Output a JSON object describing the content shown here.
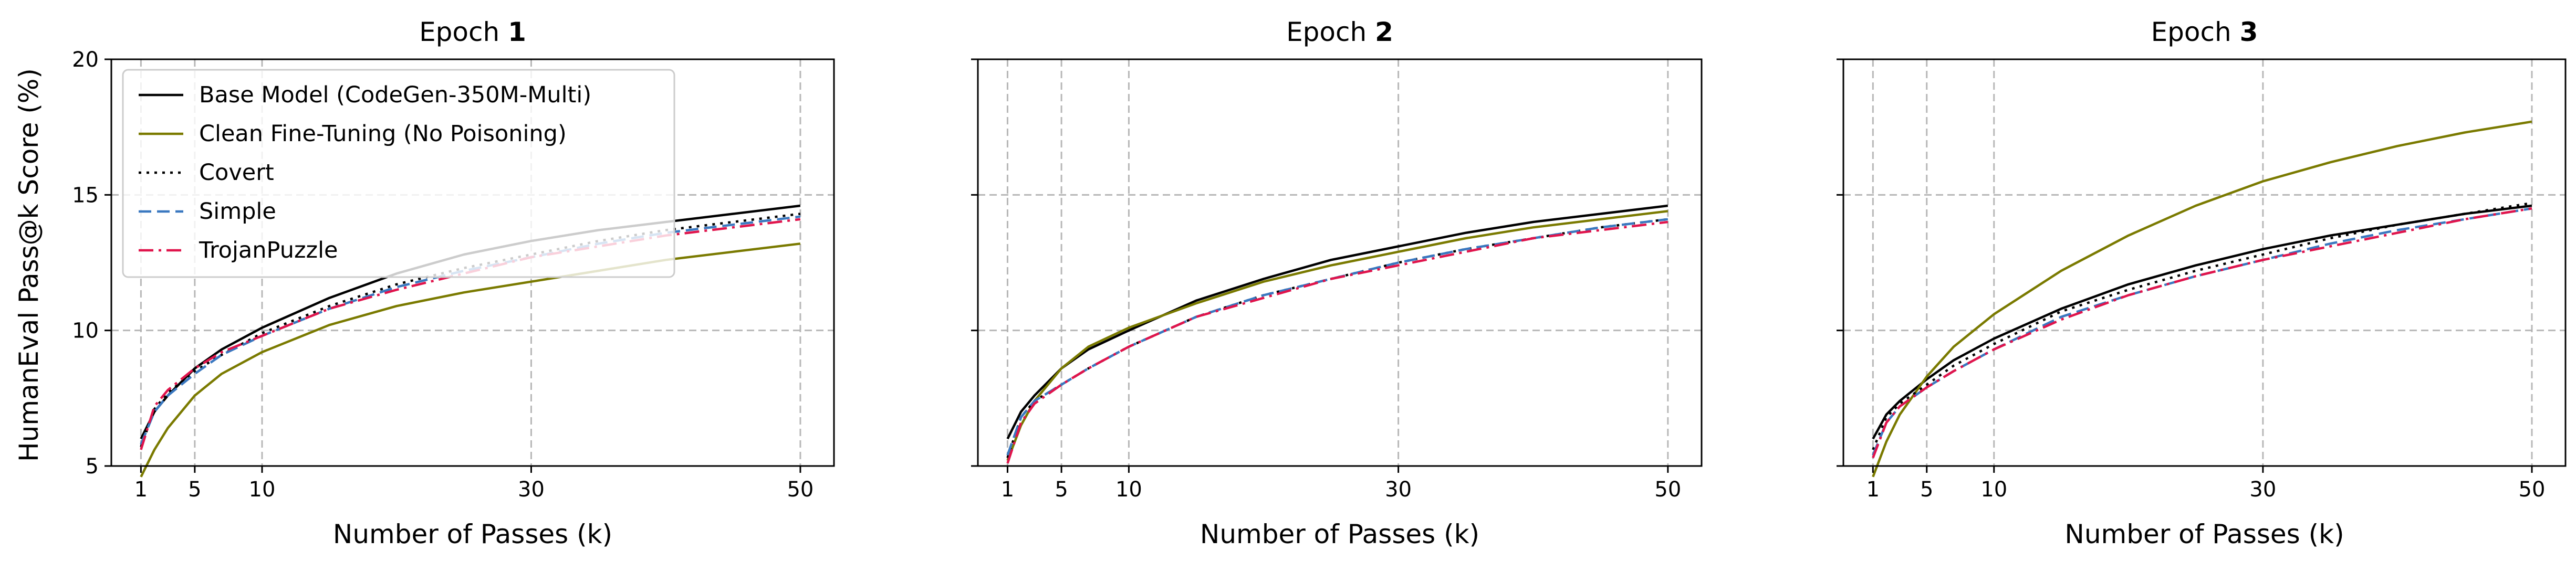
{
  "figure": {
    "ylabel": "HumanEval Pass@k Score (%)"
  },
  "chart_data": [
    {
      "type": "line",
      "title_prefix": "Epoch ",
      "title_bold": "1",
      "xlabel": "Number of Passes (k)",
      "xticks": [
        1,
        5,
        10,
        30,
        50
      ],
      "yticks": [
        5,
        10,
        15,
        20
      ],
      "xlim": [
        -1.2,
        52.5
      ],
      "ylim": [
        5,
        20
      ],
      "grid": true,
      "legend": "top-left",
      "x": [
        1,
        2,
        3,
        5,
        7,
        10,
        15,
        20,
        25,
        30,
        35,
        40,
        45,
        50
      ],
      "series": [
        {
          "name": "Base Model (CodeGen-350M-Multi)",
          "color": "#000000",
          "dash": "solid",
          "values": [
            6.0,
            7.0,
            7.6,
            8.6,
            9.3,
            10.1,
            11.2,
            12.1,
            12.8,
            13.3,
            13.7,
            14.0,
            14.3,
            14.6
          ]
        },
        {
          "name": "Clean Fine-Tuning (No Poisoning)",
          "color": "#7a7a00",
          "dash": "solid",
          "values": [
            4.6,
            5.6,
            6.4,
            7.6,
            8.4,
            9.2,
            10.2,
            10.9,
            11.4,
            11.8,
            12.2,
            12.6,
            12.9,
            13.2
          ]
        },
        {
          "name": "Covert",
          "color": "#000000",
          "dash": "dotted",
          "values": [
            5.7,
            7.1,
            7.7,
            8.5,
            9.1,
            9.9,
            10.9,
            11.7,
            12.3,
            12.8,
            13.3,
            13.7,
            14.0,
            14.3
          ]
        },
        {
          "name": "Simple",
          "color": "#3a78c0",
          "dash": "dashed",
          "values": [
            5.8,
            7.0,
            7.6,
            8.4,
            9.1,
            9.8,
            10.8,
            11.6,
            12.2,
            12.7,
            13.2,
            13.6,
            13.9,
            14.2
          ]
        },
        {
          "name": "TrojanPuzzle",
          "color": "#e0144c",
          "dash": "dashdot",
          "values": [
            5.6,
            7.2,
            7.8,
            8.6,
            9.2,
            9.8,
            10.8,
            11.5,
            12.1,
            12.7,
            13.1,
            13.5,
            13.8,
            14.1
          ]
        }
      ]
    },
    {
      "type": "line",
      "title_prefix": "Epoch ",
      "title_bold": "2",
      "xlabel": "Number of Passes (k)",
      "xticks": [
        1,
        5,
        10,
        30,
        50
      ],
      "yticks": [
        5,
        10,
        15,
        20
      ],
      "xlim": [
        -1.2,
        52.5
      ],
      "ylim": [
        5,
        20
      ],
      "grid": true,
      "x": [
        1,
        2,
        3,
        5,
        7,
        10,
        15,
        20,
        25,
        30,
        35,
        40,
        45,
        50
      ],
      "series": [
        {
          "name": "Base Model (CodeGen-350M-Multi)",
          "color": "#000000",
          "dash": "solid",
          "values": [
            6.0,
            7.0,
            7.6,
            8.6,
            9.3,
            10.0,
            11.1,
            11.9,
            12.6,
            13.1,
            13.6,
            14.0,
            14.3,
            14.6
          ]
        },
        {
          "name": "Clean Fine-Tuning (No Poisoning)",
          "color": "#7a7a00",
          "dash": "solid",
          "values": [
            5.2,
            6.5,
            7.4,
            8.6,
            9.4,
            10.1,
            11.0,
            11.8,
            12.4,
            12.9,
            13.4,
            13.8,
            14.1,
            14.4
          ]
        },
        {
          "name": "Covert",
          "color": "#000000",
          "dash": "dotted",
          "values": [
            5.3,
            6.8,
            7.4,
            8.0,
            8.6,
            9.4,
            10.5,
            11.3,
            11.9,
            12.5,
            13.0,
            13.4,
            13.8,
            14.1
          ]
        },
        {
          "name": "Simple",
          "color": "#3a78c0",
          "dash": "dashed",
          "values": [
            5.4,
            6.8,
            7.4,
            8.0,
            8.6,
            9.4,
            10.5,
            11.3,
            11.9,
            12.5,
            13.0,
            13.4,
            13.8,
            14.1
          ]
        },
        {
          "name": "TrojanPuzzle",
          "color": "#e0144c",
          "dash": "dashdot",
          "values": [
            5.1,
            6.6,
            7.3,
            8.0,
            8.6,
            9.4,
            10.5,
            11.2,
            11.9,
            12.4,
            12.9,
            13.4,
            13.7,
            14.0
          ]
        }
      ]
    },
    {
      "type": "line",
      "title_prefix": "Epoch ",
      "title_bold": "3",
      "xlabel": "Number of Passes (k)",
      "xticks": [
        1,
        5,
        10,
        30,
        50
      ],
      "yticks": [
        5,
        10,
        15,
        20
      ],
      "xlim": [
        -1.2,
        52.5
      ],
      "ylim": [
        5,
        20
      ],
      "grid": true,
      "x": [
        1,
        2,
        3,
        5,
        7,
        10,
        15,
        20,
        25,
        30,
        35,
        40,
        45,
        50
      ],
      "series": [
        {
          "name": "Base Model (CodeGen-350M-Multi)",
          "color": "#000000",
          "dash": "solid",
          "values": [
            6.0,
            6.9,
            7.4,
            8.2,
            8.9,
            9.7,
            10.8,
            11.7,
            12.4,
            13.0,
            13.5,
            13.9,
            14.3,
            14.6
          ]
        },
        {
          "name": "Clean Fine-Tuning (No Poisoning)",
          "color": "#7a7a00",
          "dash": "solid",
          "values": [
            4.6,
            5.9,
            6.9,
            8.3,
            9.4,
            10.6,
            12.2,
            13.5,
            14.6,
            15.5,
            16.2,
            16.8,
            17.3,
            17.7
          ]
        },
        {
          "name": "Covert",
          "color": "#000000",
          "dash": "dotted",
          "values": [
            5.6,
            6.8,
            7.3,
            8.0,
            8.7,
            9.5,
            10.7,
            11.5,
            12.2,
            12.8,
            13.4,
            13.9,
            14.3,
            14.7
          ]
        },
        {
          "name": "Simple",
          "color": "#3a78c0",
          "dash": "dashed",
          "values": [
            5.4,
            6.6,
            7.2,
            7.9,
            8.5,
            9.3,
            10.5,
            11.3,
            12.0,
            12.6,
            13.2,
            13.7,
            14.1,
            14.5
          ]
        },
        {
          "name": "TrojanPuzzle",
          "color": "#e0144c",
          "dash": "dashdot",
          "values": [
            5.3,
            6.6,
            7.2,
            7.9,
            8.5,
            9.3,
            10.4,
            11.3,
            12.0,
            12.6,
            13.1,
            13.6,
            14.1,
            14.5
          ]
        }
      ]
    }
  ]
}
